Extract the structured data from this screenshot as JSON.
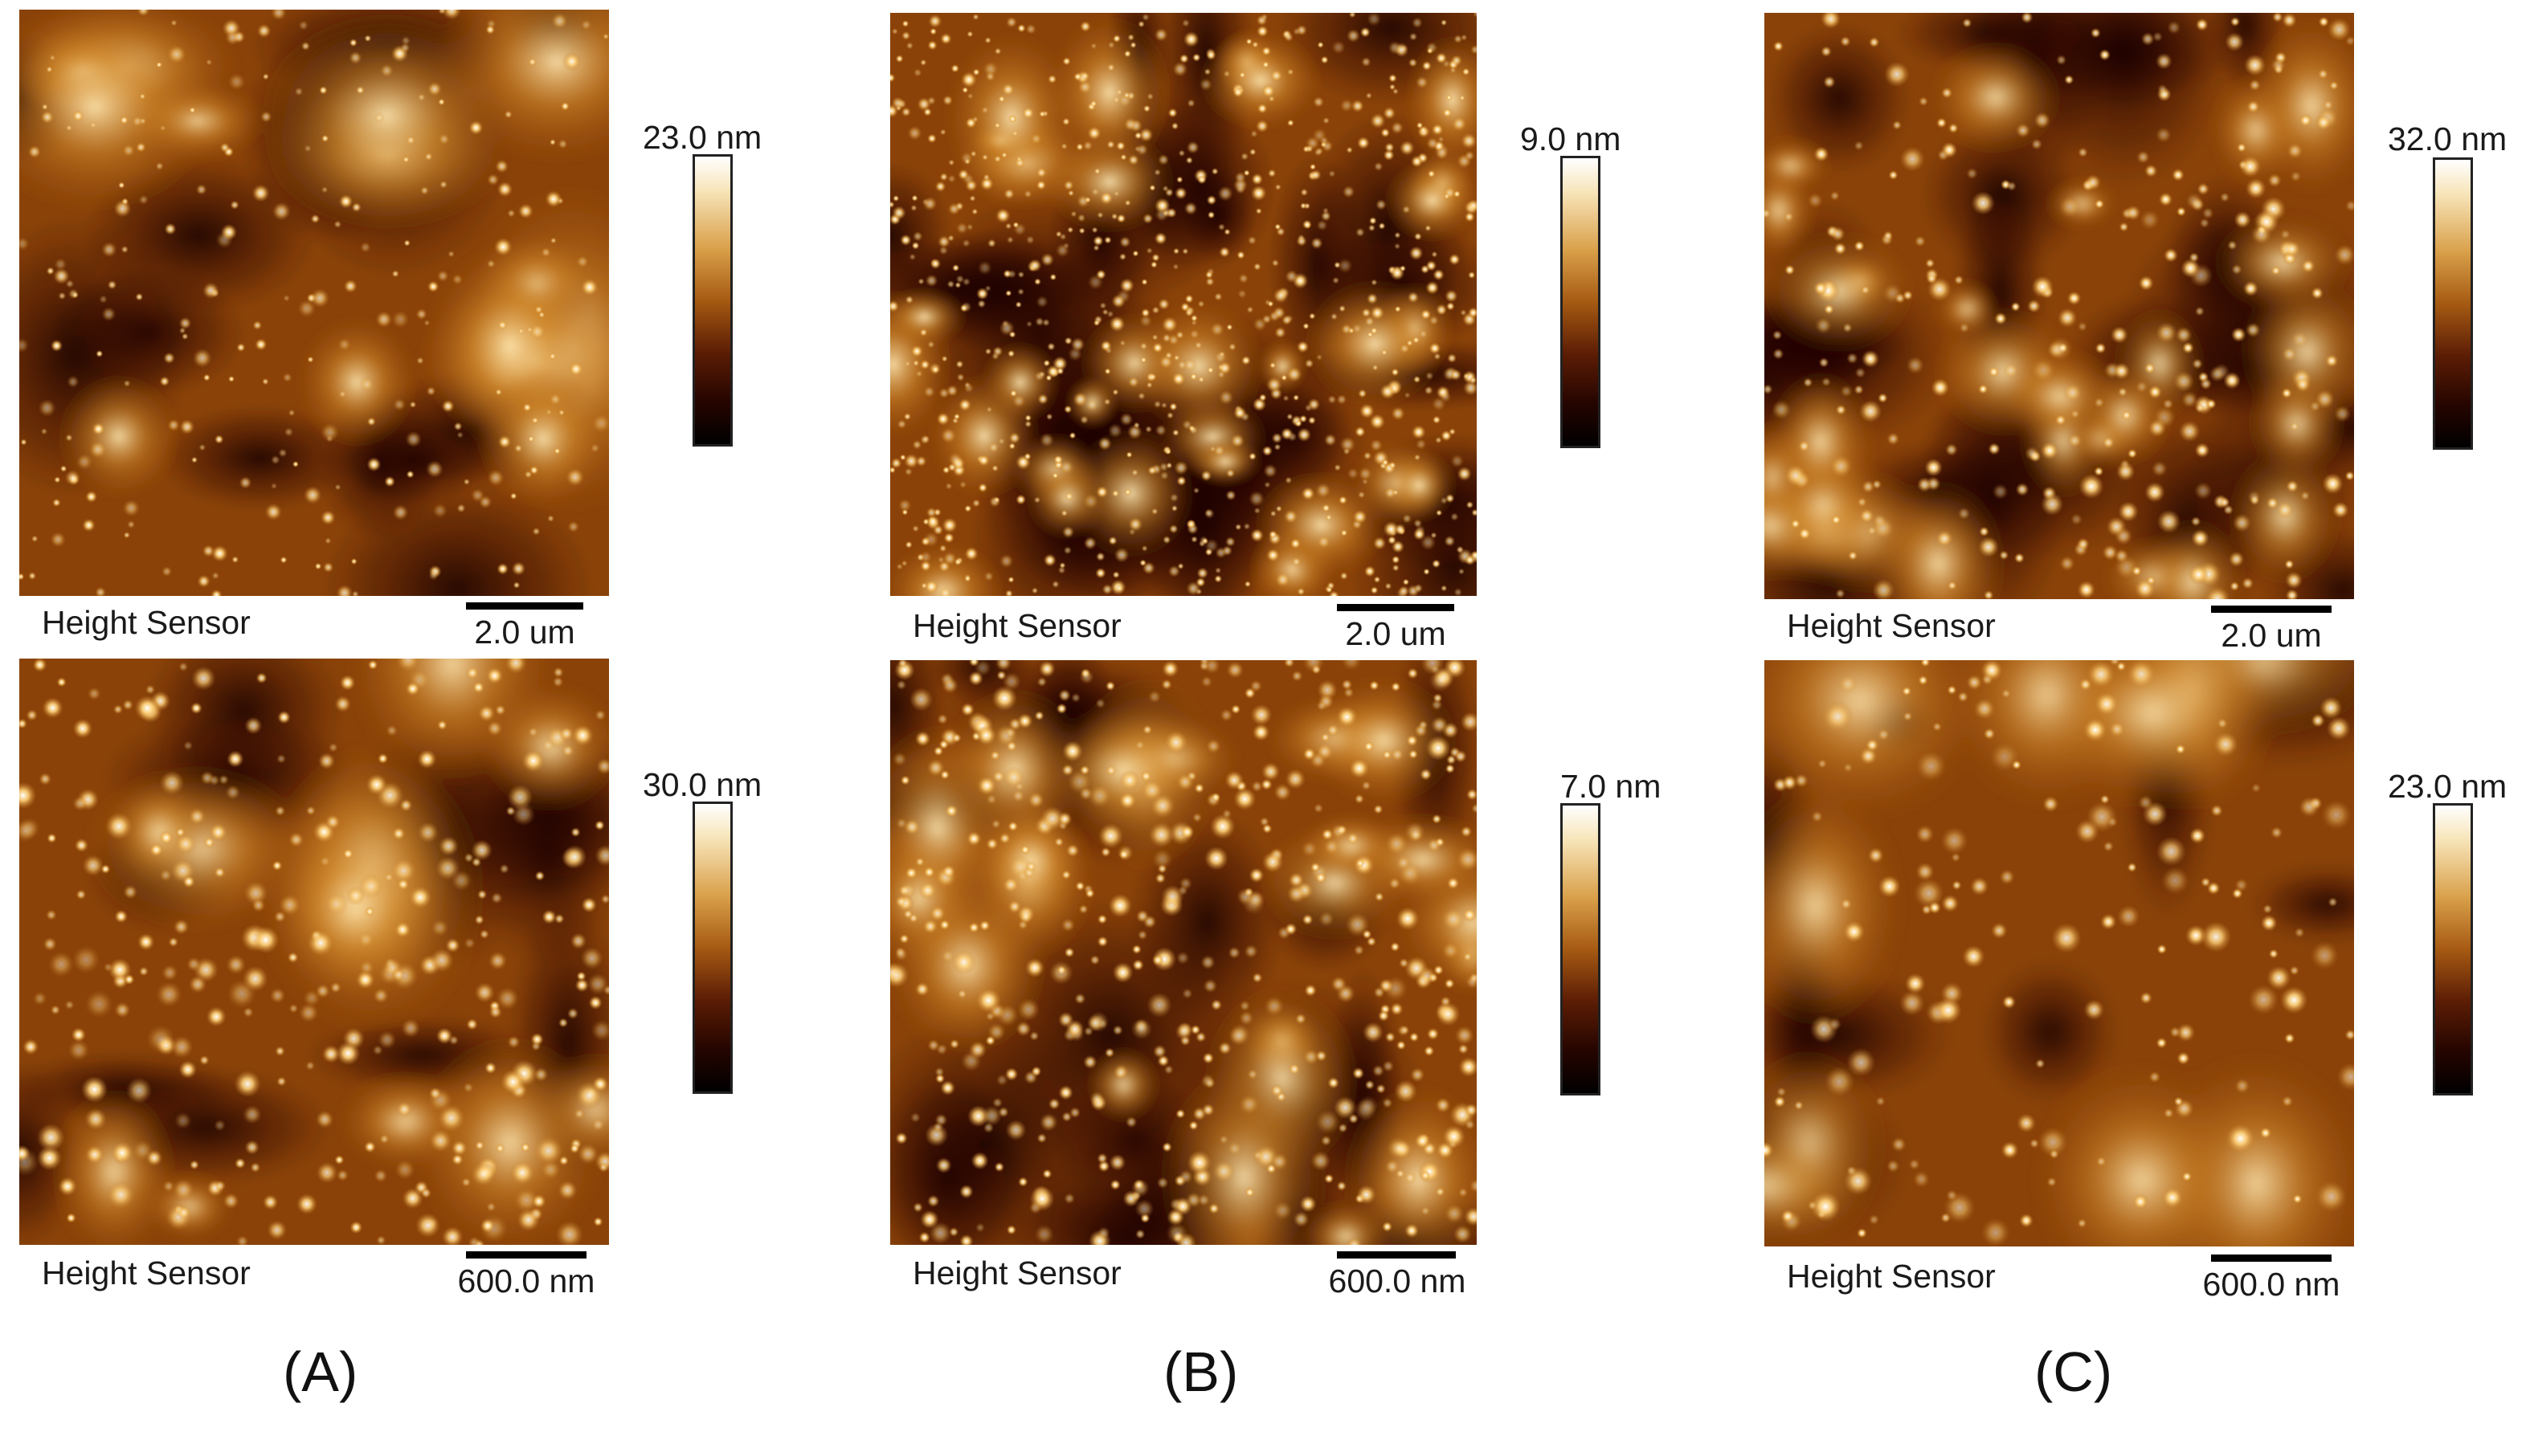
{
  "rows": [
    [
      {
        "sensor_label": "Height Sensor",
        "scale_label": "2.0 um",
        "colorbar_max": "23.0 nm",
        "texture": "A-top"
      },
      {
        "sensor_label": "Height Sensor",
        "scale_label": "2.0 um",
        "colorbar_max": "9.0 nm",
        "texture": "B-top"
      },
      {
        "sensor_label": "Height Sensor",
        "scale_label": "2.0 um",
        "colorbar_max": "32.0 nm",
        "texture": "C-top"
      }
    ],
    [
      {
        "sensor_label": "Height Sensor",
        "scale_label": "600.0 nm",
        "colorbar_max": "30.0 nm",
        "texture": "A-bottom"
      },
      {
        "sensor_label": "Height Sensor",
        "scale_label": "600.0 nm",
        "colorbar_max": "7.0 nm",
        "texture": "B-bottom"
      },
      {
        "sensor_label": "Height Sensor",
        "scale_label": "600.0 nm",
        "colorbar_max": "23.0 nm",
        "texture": "C-bottom"
      }
    ]
  ],
  "captions": [
    "(A)",
    "(B)",
    "(C)"
  ],
  "colors": {
    "low": "#000000",
    "mid": "#a65a12",
    "high": "#ffffff"
  }
}
